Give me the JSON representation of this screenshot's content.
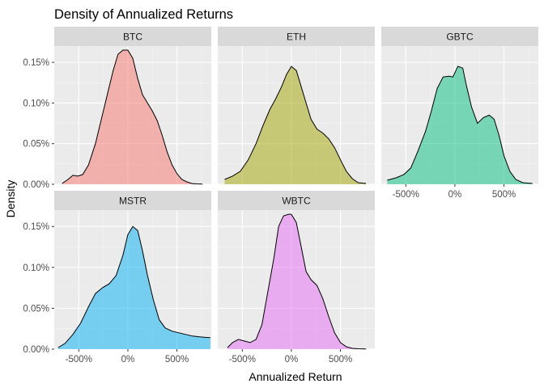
{
  "chart_data": {
    "type": "area",
    "title": "Density of Annualized Returns",
    "xlabel": "Annualized Return",
    "ylabel": "Density",
    "xlim": [
      -750,
      850
    ],
    "ylim": [
      0,
      0.0017
    ],
    "x_ticks": [
      {
        "value": -500,
        "label": "-500%"
      },
      {
        "value": 0,
        "label": "0%"
      },
      {
        "value": 500,
        "label": "500%"
      }
    ],
    "y_ticks": [
      {
        "value": 0,
        "label": "0.00%"
      },
      {
        "value": 0.0005,
        "label": "0.05%"
      },
      {
        "value": 0.001,
        "label": "0.10%"
      },
      {
        "value": 0.0015,
        "label": "0.15%"
      }
    ],
    "grid": true,
    "facets": [
      {
        "name": "BTC",
        "color": "#F8766D",
        "x": [
          -670,
          -610,
          -560,
          -510,
          -460,
          -400,
          -330,
          -270,
          -200,
          -150,
          -100,
          -50,
          0,
          50,
          100,
          150,
          200,
          250,
          300,
          350,
          400,
          450,
          500,
          550,
          600,
          650,
          700,
          760
        ],
        "y": [
          1e-05,
          6e-05,
          0.00011,
          0.0001,
          0.00012,
          0.00024,
          0.0005,
          0.0008,
          0.00115,
          0.0014,
          0.0016,
          0.00165,
          0.00165,
          0.00155,
          0.0013,
          0.0011,
          0.001,
          0.0009,
          0.00078,
          0.0006,
          0.0004,
          0.00024,
          0.00013,
          6e-05,
          3e-05,
          1e-05,
          5e-06,
          3e-06
        ]
      },
      {
        "name": "ETH",
        "color": "#A3A500",
        "x": [
          -680,
          -600,
          -520,
          -440,
          -360,
          -290,
          -220,
          -160,
          -100,
          -50,
          0,
          50,
          100,
          150,
          200,
          260,
          320,
          380,
          440,
          500,
          560,
          620,
          680,
          760
        ],
        "y": [
          6e-05,
          0.0001,
          0.00016,
          0.0003,
          0.0005,
          0.00072,
          0.00092,
          0.00105,
          0.0012,
          0.00135,
          0.00145,
          0.0014,
          0.0012,
          0.001,
          0.0008,
          0.00068,
          0.00063,
          0.00056,
          0.00045,
          0.0003,
          0.00016,
          7e-05,
          2e-05,
          1e-05
        ]
      },
      {
        "name": "GBTC",
        "color": "#00BF7D",
        "x": [
          -690,
          -600,
          -520,
          -450,
          -380,
          -300,
          -240,
          -180,
          -120,
          -60,
          -20,
          30,
          80,
          120,
          170,
          230,
          290,
          350,
          400,
          450,
          500,
          560,
          620,
          690,
          790
        ],
        "y": [
          5e-05,
          8e-05,
          0.00012,
          0.0002,
          0.0004,
          0.00065,
          0.0009,
          0.00118,
          0.00132,
          0.00133,
          0.00132,
          0.00145,
          0.00143,
          0.0012,
          0.00095,
          0.00075,
          0.00082,
          0.00085,
          0.0008,
          0.0006,
          0.00035,
          0.00016,
          6e-05,
          2e-05,
          1e-05
        ]
      },
      {
        "name": "MSTR",
        "color": "#00B0F6",
        "x": [
          -710,
          -640,
          -560,
          -480,
          -400,
          -330,
          -260,
          -190,
          -120,
          -50,
          0,
          50,
          100,
          150,
          200,
          260,
          320,
          380,
          450,
          520,
          590,
          660,
          730,
          840
        ],
        "y": [
          2e-05,
          7e-05,
          0.00018,
          0.00032,
          0.00052,
          0.00068,
          0.00075,
          0.0008,
          0.0009,
          0.00115,
          0.0014,
          0.0015,
          0.00145,
          0.0012,
          0.0009,
          0.0006,
          0.00036,
          0.00026,
          0.00022,
          0.0002,
          0.00018,
          0.00016,
          0.00015,
          0.00014
        ]
      },
      {
        "name": "WBTC",
        "color": "#E76BF3",
        "x": [
          -650,
          -600,
          -540,
          -480,
          -420,
          -360,
          -300,
          -240,
          -180,
          -130,
          -80,
          -30,
          0,
          50,
          100,
          150,
          200,
          260,
          320,
          380,
          440,
          500,
          560,
          620,
          680,
          760
        ],
        "y": [
          2e-05,
          8e-05,
          0.00012,
          0.0001,
          8e-05,
          0.00012,
          0.0003,
          0.0007,
          0.0011,
          0.0015,
          0.00163,
          0.00165,
          0.00165,
          0.00155,
          0.00125,
          0.00095,
          0.00085,
          0.00078,
          0.00062,
          0.0004,
          0.0002,
          8e-05,
          3e-05,
          1e-05,
          5e-06,
          3e-06
        ]
      }
    ]
  }
}
